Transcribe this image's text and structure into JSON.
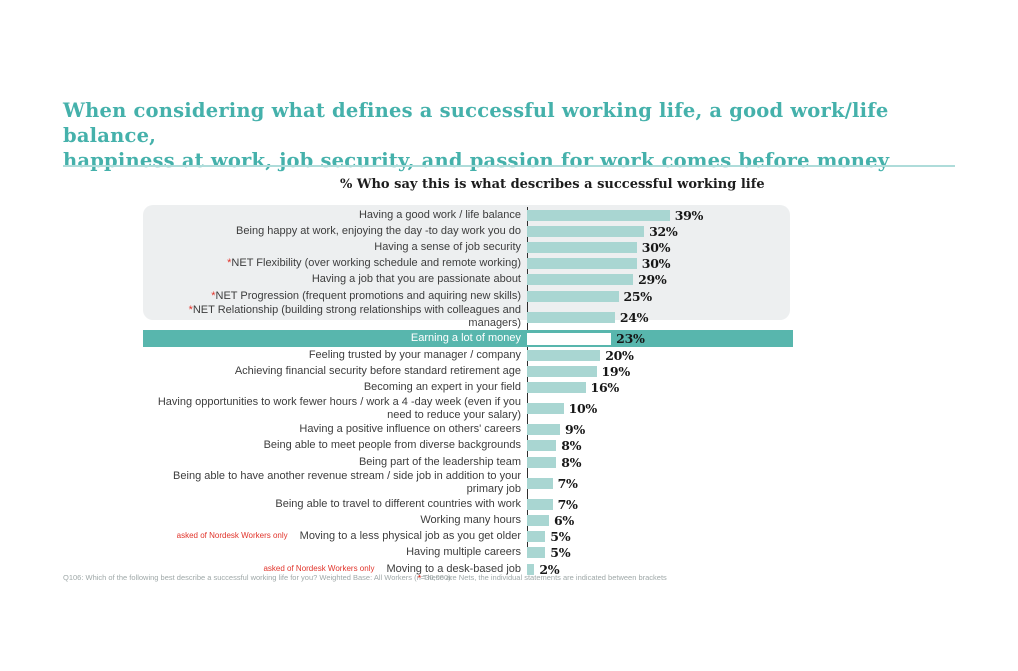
{
  "page": {
    "title_line1": "When considering what defines a successful working life, a good work/life balance,",
    "title_line2": "happiness at work, job security, and passion for work comes before money",
    "footnote_left": "Q106: Which of the following best describe a successful working life for you? Weighted Base: All Workers (n=30,000).",
    "footnote_right_marker": "*",
    "footnote_right": "These are Nets, the individual statements are indicated between brackets"
  },
  "chart_data": {
    "type": "bar",
    "orientation": "horizontal",
    "title": "% Who say this is what describes a successful working life",
    "unit": "%",
    "xlim": [
      0,
      40
    ],
    "grid": false,
    "legend": "none",
    "categories": [
      "Having a good work / life balance",
      "Being happy at work, enjoying the day -to day work you do",
      "Having a sense of job security",
      "*NET Flexibility (over working schedule and remote working)",
      "Having a job that you are passionate about",
      "*NET Progression (frequent promotions and aquiring new skills)",
      "*NET Relationship (building strong relationships with colleagues and managers)",
      "Earning a lot of money",
      "Feeling trusted by your manager / company",
      "Achieving financial security before standard retirement age",
      "Becoming an expert in your field",
      "Having opportunities to work fewer hours / work a 4 -day week (even if you need to reduce your salary)",
      "Having a positive influence on others' careers",
      "Being able to meet people from diverse backgrounds",
      "Being part of the leadership team",
      "Being able to have another revenue stream / side job in addition to your primary job",
      "Being able to travel to different countries with work",
      "Working many hours",
      "Moving to a less physical job as you get older",
      "Having multiple careers",
      "Moving to a desk-based job"
    ],
    "values": [
      39,
      32,
      30,
      30,
      29,
      25,
      24,
      23,
      20,
      19,
      16,
      10,
      9,
      8,
      8,
      7,
      7,
      6,
      5,
      5,
      2
    ],
    "items": [
      {
        "label": "Having a good work / life balance",
        "value": 39
      },
      {
        "label": "Being happy at work, enjoying the day -to day work you do",
        "value": 32
      },
      {
        "label": "Having a sense of job security",
        "value": 30
      },
      {
        "label": "*NET Flexibility (over working schedule and remote working)",
        "value": 30
      },
      {
        "label": "Having a job that you are passionate about",
        "value": 29
      },
      {
        "label": "*NET Progression (frequent promotions and aquiring new skills)",
        "value": 25
      },
      {
        "label": "*NET Relationship (building strong relationships with colleagues and managers)",
        "value": 24
      },
      {
        "label": "Earning a lot of money",
        "value": 23,
        "highlight": true
      },
      {
        "label": "Feeling trusted by your manager / company",
        "value": 20
      },
      {
        "label": "Achieving financial security before standard retirement age",
        "value": 19
      },
      {
        "label": "Becoming an expert in your field",
        "value": 16
      },
      {
        "label": "Having opportunities to work fewer hours / work a 4 -day week (even if you need to reduce your salary)",
        "value": 10
      },
      {
        "label": "Having a positive influence on others' careers",
        "value": 9
      },
      {
        "label": "Being able to meet people from diverse backgrounds",
        "value": 8
      },
      {
        "label": "Being part of the leadership team",
        "value": 8
      },
      {
        "label": "Being able to have another revenue stream / side job in addition to your primary job",
        "value": 7
      },
      {
        "label": "Being able to travel to different countries with work",
        "value": 7
      },
      {
        "label": "Working many hours",
        "value": 6
      },
      {
        "label": "Moving to a less physical job as you get older",
        "value": 5,
        "note": "asked of Nordesk Workers only"
      },
      {
        "label": "Having multiple careers",
        "value": 5
      },
      {
        "label": "Moving to a desk-based job",
        "value": 2,
        "note": "asked of Nordesk Workers only"
      }
    ],
    "colors": {
      "bar": "#a9d6d2",
      "highlight_band": "#58b6ad",
      "highlight_bar": "#ffffff",
      "panel_background": "#edeff0",
      "title_accent": "#45b1ab",
      "note_red": "#e1342b",
      "label_text": "#3d3d3d",
      "value_text": "#171717"
    }
  }
}
